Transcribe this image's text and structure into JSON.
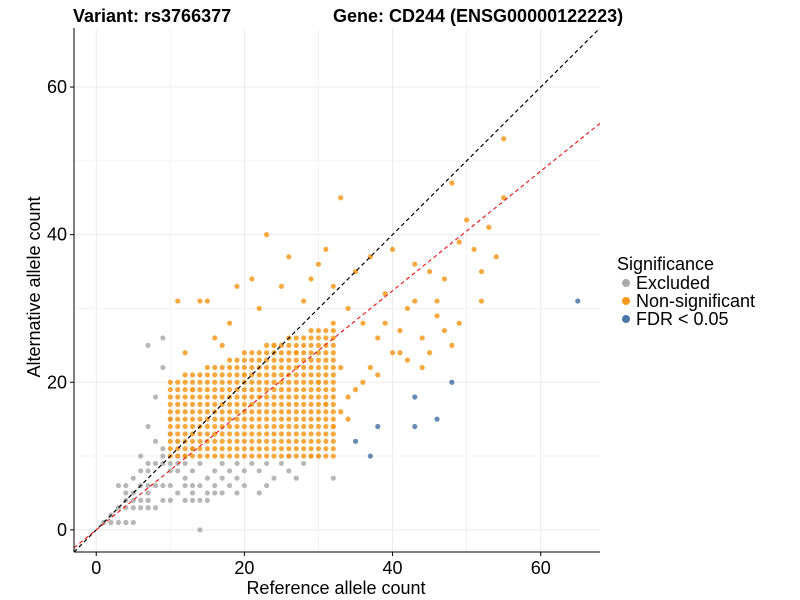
{
  "titles": {
    "variant": "Variant: rs3766377",
    "gene": "Gene: CD244 (ENSG00000122223)"
  },
  "colors": {
    "excluded": "#aaaaaa",
    "non_significant": "#f59a1e",
    "fdr": "#4a77a8",
    "identity_line": "#000000",
    "fit_line": "#e8231f",
    "grid": "#ebebeb",
    "axis": "#000000"
  },
  "chart_data": {
    "type": "scatter",
    "title": "",
    "xlabel": "Reference allele count",
    "ylabel": "Alternative allele count",
    "xlim": [
      -3,
      68
    ],
    "ylim": [
      -3,
      68
    ],
    "x_ticks": [
      "0",
      "20",
      "40",
      "60"
    ],
    "y_ticks": [
      "0",
      "20",
      "40",
      "60"
    ],
    "x_tick_values": [
      0,
      20,
      40,
      60
    ],
    "y_tick_values": [
      0,
      20,
      40,
      60
    ],
    "grid": true,
    "legend": {
      "title": "Significance",
      "placement": "right",
      "items": [
        "Excluded",
        "Non-significant",
        "FDR < 0.05"
      ]
    },
    "reference_lines": [
      {
        "name": "identity",
        "slope": 1,
        "intercept": 0,
        "style": "dashed",
        "color": "black"
      },
      {
        "name": "fit",
        "slope": 0.81,
        "intercept": 0,
        "style": "dashed",
        "color": "red"
      }
    ],
    "series": [
      {
        "name": "Excluded",
        "points": [
          [
            1,
            1
          ],
          [
            2,
            1
          ],
          [
            2,
            2
          ],
          [
            3,
            1
          ],
          [
            3,
            3
          ],
          [
            3,
            6
          ],
          [
            4,
            1
          ],
          [
            4,
            3
          ],
          [
            4,
            4
          ],
          [
            4,
            5
          ],
          [
            4,
            6
          ],
          [
            5,
            1
          ],
          [
            5,
            3
          ],
          [
            5,
            4
          ],
          [
            5,
            5
          ],
          [
            5,
            7
          ],
          [
            6,
            3
          ],
          [
            6,
            4
          ],
          [
            6,
            6
          ],
          [
            6,
            8
          ],
          [
            6,
            10
          ],
          [
            7,
            3
          ],
          [
            7,
            4
          ],
          [
            7,
            5
          ],
          [
            7,
            6
          ],
          [
            7,
            8
          ],
          [
            7,
            9
          ],
          [
            7,
            14
          ],
          [
            7,
            25
          ],
          [
            8,
            3
          ],
          [
            8,
            6
          ],
          [
            8,
            9
          ],
          [
            8,
            12
          ],
          [
            8,
            18
          ],
          [
            9,
            4
          ],
          [
            9,
            6
          ],
          [
            9,
            9
          ],
          [
            9,
            10
          ],
          [
            9,
            11
          ],
          [
            9,
            22
          ],
          [
            9,
            26
          ],
          [
            10,
            4
          ],
          [
            10,
            6
          ],
          [
            10,
            8
          ],
          [
            10,
            9
          ],
          [
            10,
            13
          ],
          [
            10,
            15
          ],
          [
            11,
            5
          ],
          [
            11,
            8
          ],
          [
            11,
            9
          ],
          [
            11,
            10
          ],
          [
            11,
            12
          ],
          [
            12,
            4
          ],
          [
            12,
            6
          ],
          [
            12,
            7
          ],
          [
            12,
            9
          ],
          [
            13,
            4
          ],
          [
            13,
            5
          ],
          [
            13,
            6
          ],
          [
            13,
            8
          ],
          [
            14,
            0
          ],
          [
            14,
            4
          ],
          [
            14,
            6
          ],
          [
            14,
            9
          ],
          [
            15,
            4
          ],
          [
            15,
            5
          ],
          [
            15,
            7
          ],
          [
            16,
            5
          ],
          [
            16,
            6
          ],
          [
            16,
            8
          ],
          [
            17,
            5
          ],
          [
            17,
            7
          ],
          [
            17,
            9
          ],
          [
            18,
            6
          ],
          [
            18,
            8
          ],
          [
            19,
            5
          ],
          [
            19,
            7
          ],
          [
            19,
            9
          ],
          [
            20,
            6
          ],
          [
            20,
            8
          ],
          [
            21,
            9
          ],
          [
            22,
            5
          ],
          [
            22,
            8
          ],
          [
            23,
            6
          ],
          [
            23,
            9
          ],
          [
            24,
            7
          ],
          [
            25,
            9
          ],
          [
            26,
            8
          ],
          [
            26,
            10
          ],
          [
            27,
            7
          ],
          [
            28,
            9
          ],
          [
            30,
            10
          ],
          [
            32,
            7
          ]
        ]
      },
      {
        "name": "FDR < 0.05",
        "points": [
          [
            35,
            12
          ],
          [
            37,
            10
          ],
          [
            38,
            14
          ],
          [
            43,
            14
          ],
          [
            43,
            18
          ],
          [
            46,
            15
          ],
          [
            48,
            20
          ],
          [
            65,
            31
          ]
        ]
      }
    ],
    "non_significant_cloud": {
      "x_range": [
        10,
        32
      ],
      "y_min": 10,
      "y_max_base": 20,
      "y_max_slope": 0.35,
      "x_step": 1,
      "y_step": 1
    },
    "non_significant_extra": [
      [
        11,
        31
      ],
      [
        12,
        24
      ],
      [
        13,
        19
      ],
      [
        14,
        31
      ],
      [
        15,
        31
      ],
      [
        16,
        26
      ],
      [
        17,
        25
      ],
      [
        18,
        28
      ],
      [
        19,
        33
      ],
      [
        20,
        21
      ],
      [
        21,
        34
      ],
      [
        22,
        30
      ],
      [
        23,
        40
      ],
      [
        24,
        25
      ],
      [
        25,
        33
      ],
      [
        26,
        37
      ],
      [
        27,
        24
      ],
      [
        28,
        31
      ],
      [
        29,
        34
      ],
      [
        30,
        36
      ],
      [
        31,
        38
      ],
      [
        32,
        33
      ],
      [
        33,
        45
      ],
      [
        34,
        30
      ],
      [
        35,
        35
      ],
      [
        36,
        28
      ],
      [
        37,
        37
      ],
      [
        38,
        26
      ],
      [
        39,
        32
      ],
      [
        40,
        38
      ],
      [
        41,
        24
      ],
      [
        42,
        30
      ],
      [
        43,
        36
      ],
      [
        44,
        22
      ],
      [
        45,
        35
      ],
      [
        46,
        31
      ],
      [
        47,
        34
      ],
      [
        48,
        47
      ],
      [
        49,
        28
      ],
      [
        50,
        42
      ],
      [
        51,
        38
      ],
      [
        52,
        31
      ],
      [
        53,
        41
      ],
      [
        54,
        37
      ],
      [
        55,
        53
      ],
      [
        48,
        25
      ],
      [
        45,
        24
      ],
      [
        47,
        27
      ],
      [
        33,
        22
      ],
      [
        34,
        18
      ],
      [
        36,
        20
      ],
      [
        38,
        21
      ],
      [
        40,
        24
      ],
      [
        42,
        23
      ],
      [
        44,
        26
      ],
      [
        46,
        29
      ],
      [
        30,
        20
      ],
      [
        31,
        17
      ],
      [
        32,
        14
      ],
      [
        34,
        15
      ],
      [
        29,
        10
      ],
      [
        33,
        16
      ],
      [
        35,
        19
      ],
      [
        37,
        22
      ],
      [
        39,
        28
      ],
      [
        41,
        27
      ],
      [
        43,
        31
      ],
      [
        12,
        10
      ],
      [
        13,
        11
      ],
      [
        55,
        45
      ],
      [
        52,
        35
      ],
      [
        49,
        39
      ]
    ]
  }
}
